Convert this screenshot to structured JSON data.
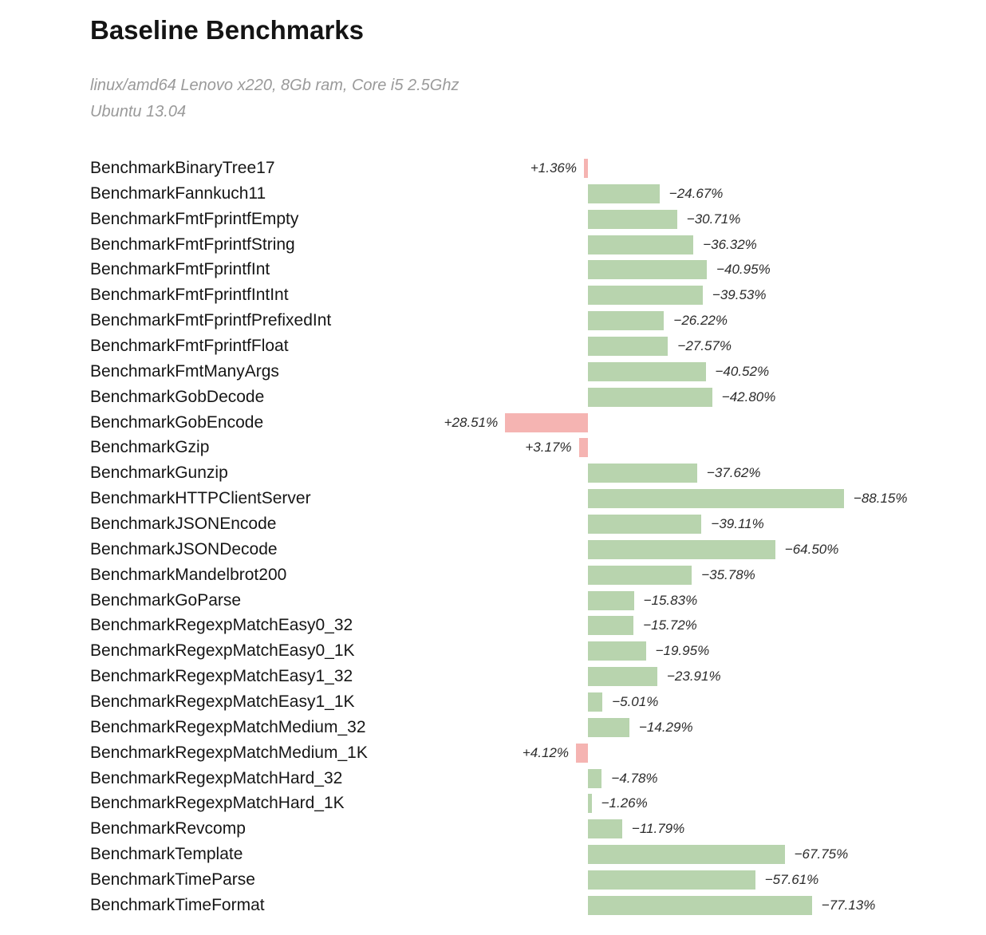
{
  "header": {
    "title": "Baseline Benchmarks",
    "subtitle_line1": "linux/amd64 Lenovo x220, 8Gb ram, Core i5 2.5Ghz",
    "subtitle_line2": "Ubuntu 13.04"
  },
  "chart_data": {
    "type": "bar",
    "orientation": "horizontal",
    "title": "Baseline Benchmarks",
    "subtitle": [
      "linux/amd64 Lenovo x220, 8Gb ram, Core i5 2.5Ghz",
      "Ubuntu 13.04"
    ],
    "value_unit": "percent_change",
    "zero_baseline": true,
    "positive_direction": "left",
    "negative_direction": "right",
    "xlim": [
      -30,
      95
    ],
    "grid": false,
    "legend": false,
    "categories": [
      "BenchmarkBinaryTree17",
      "BenchmarkFannkuch11",
      "BenchmarkFmtFprintfEmpty",
      "BenchmarkFmtFprintfString",
      "BenchmarkFmtFprintfInt",
      "BenchmarkFmtFprintfIntInt",
      "BenchmarkFmtFprintfPrefixedInt",
      "BenchmarkFmtFprintfFloat",
      "BenchmarkFmtManyArgs",
      "BenchmarkGobDecode",
      "BenchmarkGobEncode",
      "BenchmarkGzip",
      "BenchmarkGunzip",
      "BenchmarkHTTPClientServer",
      "BenchmarkJSONEncode",
      "BenchmarkJSONDecode",
      "BenchmarkMandelbrot200",
      "BenchmarkGoParse",
      "BenchmarkRegexpMatchEasy0_32",
      "BenchmarkRegexpMatchEasy0_1K",
      "BenchmarkRegexpMatchEasy1_32",
      "BenchmarkRegexpMatchEasy1_1K",
      "BenchmarkRegexpMatchMedium_32",
      "BenchmarkRegexpMatchMedium_1K",
      "BenchmarkRegexpMatchHard_32",
      "BenchmarkRegexpMatchHard_1K",
      "BenchmarkRevcomp",
      "BenchmarkTemplate",
      "BenchmarkTimeParse",
      "BenchmarkTimeFormat"
    ],
    "values": [
      1.36,
      -24.67,
      -30.71,
      -36.32,
      -40.95,
      -39.53,
      -26.22,
      -27.57,
      -40.52,
      -42.8,
      28.51,
      3.17,
      -37.62,
      -88.15,
      -39.11,
      -64.5,
      -35.78,
      -15.83,
      -15.72,
      -19.95,
      -23.91,
      -5.01,
      -14.29,
      4.12,
      -4.78,
      -1.26,
      -11.79,
      -67.75,
      -57.61,
      -77.13
    ],
    "value_labels": [
      "+1.36%",
      "−24.67%",
      "−30.71%",
      "−36.32%",
      "−40.95%",
      "−39.53%",
      "−26.22%",
      "−27.57%",
      "−40.52%",
      "−42.80%",
      "+28.51%",
      "+3.17%",
      "−37.62%",
      "−88.15%",
      "−39.11%",
      "−64.50%",
      "−35.78%",
      "−15.83%",
      "−15.72%",
      "−19.95%",
      "−23.91%",
      "−5.01%",
      "−14.29%",
      "+4.12%",
      "−4.78%",
      "−1.26%",
      "−11.79%",
      "−67.75%",
      "−57.61%",
      "−77.13%"
    ],
    "bar_colors": {
      "positive": "#f5b4b2",
      "negative": "#b8d4ae"
    }
  }
}
